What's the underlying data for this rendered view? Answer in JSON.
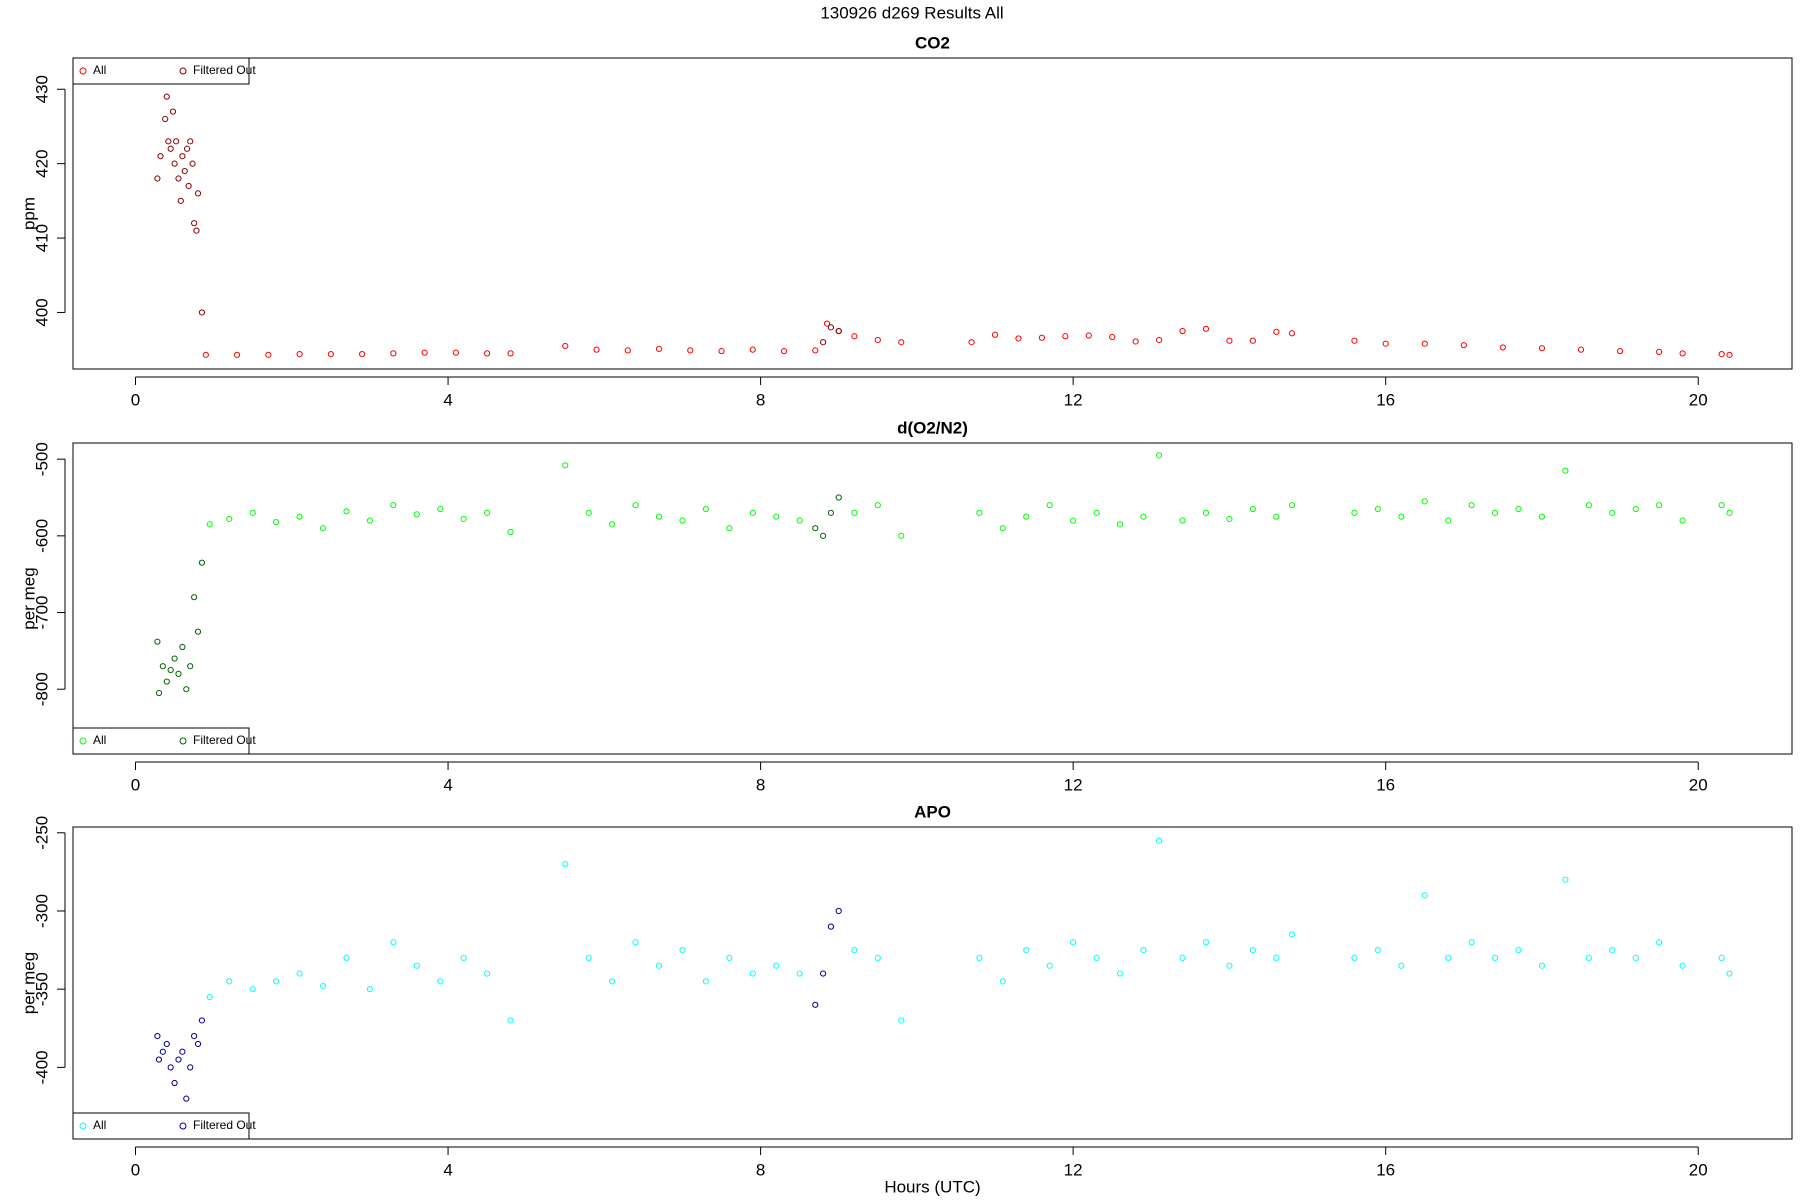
{
  "title": "130926   d269   Results All",
  "chart_data": [
    {
      "type": "scatter",
      "title": "CO2",
      "ylabel": "ppm",
      "xlim": [
        -0.8,
        21.2
      ],
      "xticks": [
        0,
        4,
        8,
        12,
        16,
        20
      ],
      "ylim": [
        392.4,
        434.2
      ],
      "yticks": [
        400,
        410,
        420,
        430
      ],
      "legend": "top-left",
      "series": [
        {
          "name": "All",
          "color": "#ff0000",
          "x": [
            0.9,
            1.3,
            1.7,
            2.1,
            2.5,
            2.9,
            3.3,
            3.7,
            4.1,
            4.5,
            4.8,
            5.5,
            5.9,
            6.3,
            6.7,
            7.1,
            7.5,
            7.9,
            8.3,
            8.7,
            8.85,
            9.0,
            9.2,
            9.5,
            9.8,
            10.7,
            11.0,
            11.3,
            11.6,
            11.9,
            12.2,
            12.5,
            12.8,
            13.1,
            13.4,
            13.7,
            14.0,
            14.3,
            14.6,
            14.8,
            15.6,
            16.0,
            16.5,
            17.0,
            17.5,
            18.0,
            18.5,
            19.0,
            19.5,
            19.8,
            20.3,
            20.4
          ],
          "values": [
            394.3,
            394.3,
            394.3,
            394.4,
            394.4,
            394.4,
            394.5,
            394.6,
            394.6,
            394.5,
            394.5,
            395.5,
            395.0,
            394.9,
            395.1,
            394.9,
            394.8,
            395.0,
            394.8,
            394.9,
            398.5,
            397.5,
            396.8,
            396.3,
            396.0,
            396.0,
            397.0,
            396.5,
            396.6,
            396.8,
            396.9,
            396.7,
            396.1,
            396.3,
            397.5,
            397.8,
            396.2,
            396.2,
            397.4,
            397.2,
            396.2,
            395.8,
            395.8,
            395.6,
            395.3,
            395.2,
            395.0,
            394.8,
            394.7,
            394.5,
            394.4,
            394.3
          ]
        },
        {
          "name": "Filtered Out",
          "color": "#8b0000",
          "x": [
            0.28,
            0.32,
            0.38,
            0.4,
            0.42,
            0.45,
            0.48,
            0.5,
            0.52,
            0.55,
            0.58,
            0.6,
            0.63,
            0.66,
            0.68,
            0.7,
            0.73,
            0.75,
            0.78,
            0.8,
            0.85,
            8.8,
            8.9,
            9.0
          ],
          "values": [
            418,
            421,
            426,
            429,
            423,
            422,
            427,
            420,
            423,
            418,
            415,
            421,
            419,
            422,
            417,
            423,
            420,
            412,
            411,
            416,
            400,
            396,
            398,
            397.5
          ]
        }
      ]
    },
    {
      "type": "scatter",
      "title": "d(O2/N2)",
      "ylabel": "per meg",
      "xlim": [
        -0.8,
        21.2
      ],
      "xticks": [
        0,
        4,
        8,
        12,
        16,
        20
      ],
      "ylim": [
        -884.5,
        -478.9
      ],
      "yticks": [
        -800,
        -700,
        -600,
        -500
      ],
      "legend": "bottom-left",
      "series": [
        {
          "name": "All",
          "color": "#00ff00",
          "x": [
            0.95,
            1.2,
            1.5,
            1.8,
            2.1,
            2.4,
            2.7,
            3.0,
            3.3,
            3.6,
            3.9,
            4.2,
            4.5,
            4.8,
            5.5,
            5.8,
            6.1,
            6.4,
            6.7,
            7.0,
            7.3,
            7.6,
            7.9,
            8.2,
            8.5,
            9.2,
            9.5,
            9.8,
            10.8,
            11.1,
            11.4,
            11.7,
            12.0,
            12.3,
            12.6,
            12.9,
            13.1,
            13.4,
            13.7,
            14.0,
            14.3,
            14.6,
            14.8,
            15.6,
            15.9,
            16.2,
            16.5,
            16.8,
            17.1,
            17.4,
            17.7,
            18.0,
            18.3,
            18.6,
            18.9,
            19.2,
            19.5,
            19.8,
            20.3,
            20.4
          ],
          "values": [
            -585,
            -578,
            -570,
            -582,
            -575,
            -590,
            -568,
            -580,
            -560,
            -572,
            -565,
            -578,
            -570,
            -595,
            -508,
            -570,
            -585,
            -560,
            -575,
            -580,
            -565,
            -590,
            -570,
            -575,
            -580,
            -570,
            -560,
            -600,
            -570,
            -590,
            -575,
            -560,
            -580,
            -570,
            -585,
            -575,
            -495,
            -580,
            -570,
            -578,
            -565,
            -575,
            -560,
            -570,
            -565,
            -575,
            -555,
            -580,
            -560,
            -570,
            -565,
            -575,
            -515,
            -560,
            -570,
            -565,
            -560,
            -580,
            -560,
            -570
          ]
        },
        {
          "name": "Filtered Out",
          "color": "#006400",
          "x": [
            0.28,
            0.3,
            0.35,
            0.4,
            0.45,
            0.5,
            0.55,
            0.6,
            0.65,
            0.7,
            0.75,
            0.8,
            0.85,
            8.7,
            8.8,
            8.9,
            9.0
          ],
          "values": [
            -738,
            -805,
            -770,
            -790,
            -775,
            -760,
            -780,
            -745,
            -800,
            -770,
            -680,
            -725,
            -635,
            -590,
            -600,
            -570,
            -550
          ]
        }
      ]
    },
    {
      "type": "scatter",
      "title": "APO",
      "ylabel": "per meg",
      "xlabel": "Hours (UTC)",
      "xlim": [
        -0.8,
        21.2
      ],
      "xticks": [
        0,
        4,
        8,
        12,
        16,
        20
      ],
      "ylim": [
        -445.8,
        -246.3
      ],
      "yticks": [
        -400,
        -350,
        -300,
        -250
      ],
      "legend": "bottom-left",
      "series": [
        {
          "name": "All",
          "color": "#00ffff",
          "x": [
            0.95,
            1.2,
            1.5,
            1.8,
            2.1,
            2.4,
            2.7,
            3.0,
            3.3,
            3.6,
            3.9,
            4.2,
            4.5,
            4.8,
            5.5,
            5.8,
            6.1,
            6.4,
            6.7,
            7.0,
            7.3,
            7.6,
            7.9,
            8.2,
            8.5,
            9.2,
            9.5,
            9.8,
            10.8,
            11.1,
            11.4,
            11.7,
            12.0,
            12.3,
            12.6,
            12.9,
            13.1,
            13.4,
            13.7,
            14.0,
            14.3,
            14.6,
            14.8,
            15.6,
            15.9,
            16.2,
            16.5,
            16.8,
            17.1,
            17.4,
            17.7,
            18.0,
            18.3,
            18.6,
            18.9,
            19.2,
            19.5,
            19.8,
            20.3,
            20.4
          ],
          "values": [
            -355,
            -345,
            -350,
            -345,
            -340,
            -348,
            -330,
            -350,
            -320,
            -335,
            -345,
            -330,
            -340,
            -370,
            -270,
            -330,
            -345,
            -320,
            -335,
            -325,
            -345,
            -330,
            -340,
            -335,
            -340,
            -325,
            -330,
            -370,
            -330,
            -345,
            -325,
            -335,
            -320,
            -330,
            -340,
            -325,
            -255,
            -330,
            -320,
            -335,
            -325,
            -330,
            -315,
            -330,
            -325,
            -335,
            -290,
            -330,
            -320,
            -330,
            -325,
            -335,
            -280,
            -330,
            -325,
            -330,
            -320,
            -335,
            -330,
            -340
          ]
        },
        {
          "name": "Filtered Out",
          "color": "#00008b",
          "x": [
            0.28,
            0.3,
            0.35,
            0.4,
            0.45,
            0.5,
            0.55,
            0.6,
            0.65,
            0.7,
            0.75,
            0.8,
            0.85,
            8.7,
            8.8,
            8.9,
            9.0
          ],
          "values": [
            -380,
            -395,
            -390,
            -385,
            -400,
            -410,
            -395,
            -390,
            -420,
            -400,
            -380,
            -385,
            -370,
            -360,
            -340,
            -310,
            -300
          ]
        }
      ]
    }
  ]
}
